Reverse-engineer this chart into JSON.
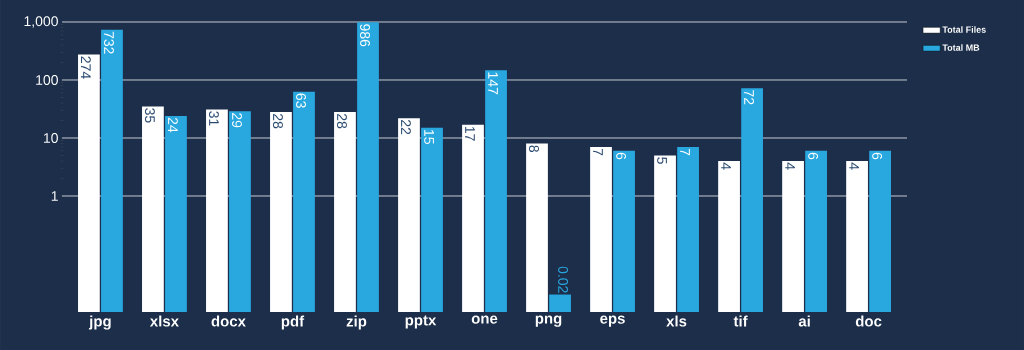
{
  "chart_data": {
    "type": "bar",
    "categories": [
      "jpg",
      "xlsx",
      "docx",
      "pdf",
      "zip",
      "pptx",
      "one",
      "png",
      "eps",
      "xls",
      "tif",
      "ai",
      "doc"
    ],
    "series": [
      {
        "name": "Total Files",
        "color": "#ffffff",
        "values": [
          274,
          35,
          31,
          28,
          28,
          22,
          17,
          8,
          7,
          5,
          4,
          4,
          4
        ]
      },
      {
        "name": "Total MB",
        "color": "#29a8e0",
        "values": [
          732,
          24,
          29,
          63,
          986,
          15,
          147,
          0.02,
          6,
          7,
          72,
          6,
          6
        ]
      }
    ],
    "log": true,
    "ylim": [
      0.01,
      1000
    ],
    "yticks": [
      {
        "value": 1,
        "label": "1"
      },
      {
        "value": 10,
        "label": "10"
      },
      {
        "value": 100,
        "label": "100"
      },
      {
        "value": 1000,
        "label": "1,000"
      }
    ],
    "grid": "y",
    "legend": "top right",
    "data_labels": true
  }
}
